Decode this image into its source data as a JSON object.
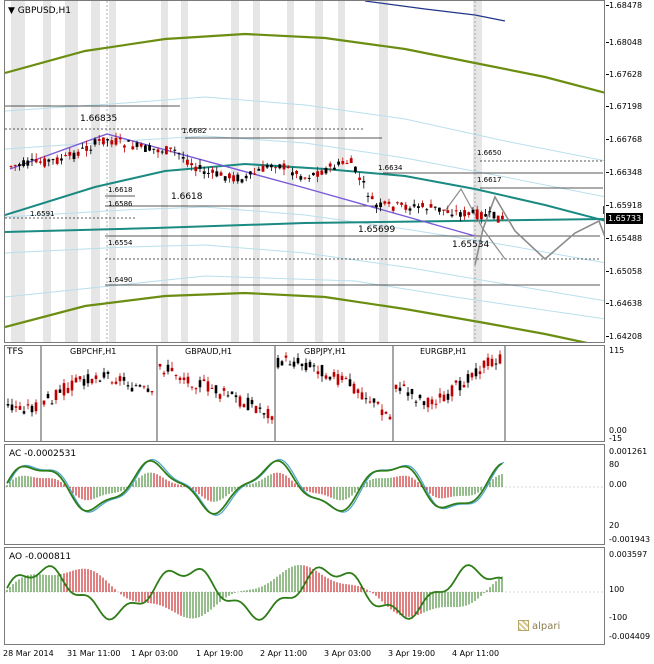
{
  "chart": {
    "title": "GBPUSD,H1",
    "price_scale": [
      "1.68478",
      "1.68048",
      "1.67628",
      "1.67198",
      "1.66768",
      "1.66348",
      "1.65918",
      "1.65488",
      "1.65058",
      "1.64638",
      "1.64208"
    ],
    "current_price": "1.65733",
    "annotations": [
      "1.66835",
      "1.6682",
      "1.6634",
      "1.6650",
      "1.6617",
      "1.6618",
      "1.6618",
      "1.6586",
      "1.6591",
      "1.65699",
      "1.6554",
      "1.65534",
      "1.6490"
    ]
  },
  "tfs_panel": {
    "label": "TFS",
    "symbols": [
      "GBPCHF,H1",
      "GBPAUD,H1",
      "GBPJPY,H1",
      "EURGBP,H1"
    ],
    "scale": [
      "115",
      "0.00",
      "-15"
    ]
  },
  "ac_panel": {
    "label": "AC -0.0002531",
    "scale": [
      "0.001261",
      "80",
      "0.00",
      "20",
      "-0.001943"
    ]
  },
  "ao_panel": {
    "label": "AO -0.000811",
    "scale": [
      "0.003597",
      "100",
      "-100",
      "-0.004409"
    ]
  },
  "time_axis": [
    "28 Mar 2014",
    "31 Mar 11:00",
    "1 Apr 03:00",
    "1 Apr 19:00",
    "2 Apr 11:00",
    "3 Apr 03:00",
    "3 Apr 19:00",
    "4 Apr 11:00"
  ],
  "branding": {
    "logo": "alpari"
  },
  "colors": {
    "bull": "#000000",
    "bear": "#c00000",
    "teal": "#1a8a82",
    "olive": "#6b8e12",
    "purple": "#7a5ad8",
    "gray": "#888888",
    "ac_green": "#2e7d18",
    "ac_blue": "#4aa3c8"
  }
}
